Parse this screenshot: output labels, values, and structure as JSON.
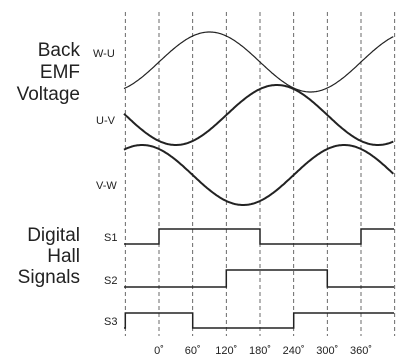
{
  "title_fragment": "",
  "groups": {
    "back_emf": [
      "Back",
      "EMF",
      "Voltage"
    ],
    "hall": [
      "Digital",
      "Hall",
      "Signals"
    ]
  },
  "emf_signals": [
    {
      "label": "W-U",
      "peak_deg": 90,
      "stroke_width": 1.2
    },
    {
      "label": "U-V",
      "peak_deg": 210,
      "stroke_width": 2
    },
    {
      "label": "V-W",
      "peak_deg": 330,
      "stroke_width": 2
    }
  ],
  "hall_signals": [
    {
      "label": "S1",
      "high_ranges_deg": [
        [
          0,
          180
        ],
        [
          360,
          420
        ]
      ]
    },
    {
      "label": "S2",
      "high_ranges_deg": [
        [
          120,
          300
        ]
      ]
    },
    {
      "label": "S3",
      "high_ranges_deg": [
        [
          -60,
          60
        ],
        [
          240,
          420
        ]
      ]
    }
  ],
  "degree_ticks": [
    "0˚",
    "60˚",
    "120˚",
    "180˚",
    "240˚",
    "300˚",
    "360˚"
  ],
  "colors": {
    "title_accent": "#e8262c",
    "line": "#222222",
    "gridline": "#444444"
  }
}
